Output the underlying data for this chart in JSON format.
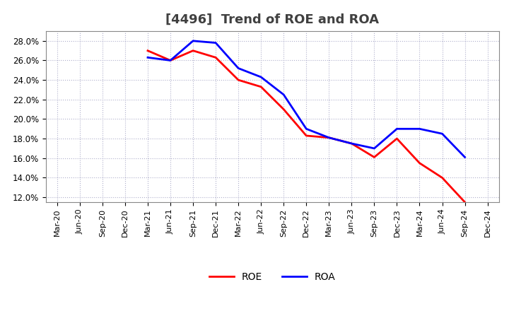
{
  "title": "[4496]  Trend of ROE and ROA",
  "roe_data": [
    [
      "Mar-20",
      null
    ],
    [
      "Jun-20",
      null
    ],
    [
      "Sep-20",
      null
    ],
    [
      "Dec-20",
      null
    ],
    [
      "Mar-21",
      27.0
    ],
    [
      "Jun-21",
      26.0
    ],
    [
      "Sep-21",
      27.0
    ],
    [
      "Dec-21",
      26.3
    ],
    [
      "Mar-22",
      24.0
    ],
    [
      "Jun-22",
      23.3
    ],
    [
      "Sep-22",
      21.0
    ],
    [
      "Dec-22",
      18.3
    ],
    [
      "Mar-23",
      18.1
    ],
    [
      "Jun-23",
      17.5
    ],
    [
      "Sep-23",
      16.1
    ],
    [
      "Dec-23",
      18.0
    ],
    [
      "Mar-24",
      15.5
    ],
    [
      "Jun-24",
      14.0
    ],
    [
      "Sep-24",
      11.5
    ],
    [
      "Dec-24",
      null
    ]
  ],
  "roa_data": [
    [
      "Mar-20",
      null
    ],
    [
      "Jun-20",
      null
    ],
    [
      "Sep-20",
      null
    ],
    [
      "Dec-20",
      null
    ],
    [
      "Mar-21",
      26.3
    ],
    [
      "Jun-21",
      26.0
    ],
    [
      "Sep-21",
      28.0
    ],
    [
      "Dec-21",
      27.8
    ],
    [
      "Mar-22",
      25.2
    ],
    [
      "Jun-22",
      24.3
    ],
    [
      "Sep-22",
      22.5
    ],
    [
      "Dec-22",
      19.0
    ],
    [
      "Mar-23",
      18.1
    ],
    [
      "Jun-23",
      17.5
    ],
    [
      "Sep-23",
      17.0
    ],
    [
      "Dec-23",
      19.0
    ],
    [
      "Mar-24",
      19.0
    ],
    [
      "Jun-24",
      18.5
    ],
    [
      "Sep-24",
      16.1
    ],
    [
      "Dec-24",
      null
    ]
  ],
  "roe_color": "#FF0000",
  "roa_color": "#0000FF",
  "background_color": "#FFFFFF",
  "grid_color": "#B0B0CC",
  "ylim_min": 11.5,
  "ylim_max": 29.0,
  "yticks": [
    12.0,
    14.0,
    16.0,
    18.0,
    20.0,
    22.0,
    24.0,
    26.0,
    28.0
  ],
  "line_width": 2.0,
  "title_fontsize": 13,
  "legend_labels": [
    "ROE",
    "ROA"
  ],
  "x_labels": [
    "Mar-20",
    "Jun-20",
    "Sep-20",
    "Dec-20",
    "Mar-21",
    "Jun-21",
    "Sep-21",
    "Dec-21",
    "Mar-22",
    "Jun-22",
    "Sep-22",
    "Dec-22",
    "Mar-23",
    "Jun-23",
    "Sep-23",
    "Dec-23",
    "Mar-24",
    "Jun-24",
    "Sep-24",
    "Dec-24"
  ]
}
